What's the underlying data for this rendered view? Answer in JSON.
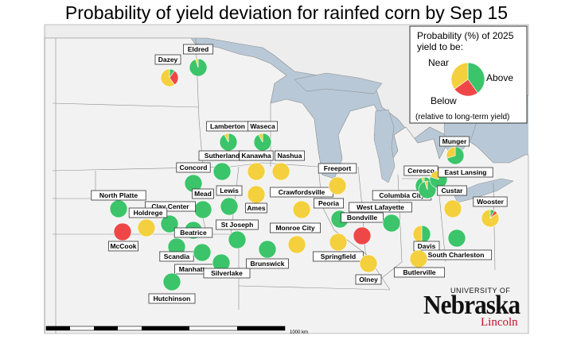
{
  "title": "Probability of yield deviation for rainfed corn by Sep 15",
  "colors": {
    "near": "#f4d03f",
    "above": "#3cc46a",
    "below": "#ef4747",
    "land": "#f2f2f2",
    "water": "#b8c8d6",
    "border": "#8a8a8a"
  },
  "legend": {
    "heading_line1": "Probability (%) of 2025",
    "heading_line2": "yield to be:",
    "near_label": "Near",
    "above_label": "Above",
    "below_label": "Below",
    "note": "(relative to long-term yield)",
    "example": {
      "near": 35,
      "above": 40,
      "below": 25
    }
  },
  "scale_bar": {
    "label": "1000 km"
  },
  "logo": {
    "top": "UNIVERSITY OF",
    "main": "Nebraska",
    "sub": "Lincoln"
  },
  "sites": [
    {
      "name": "Eldred",
      "near": 5,
      "above": 95,
      "below": 0
    },
    {
      "name": "Dazey",
      "near": 60,
      "above": 10,
      "below": 30
    },
    {
      "name": "Lamberton",
      "near": 8,
      "above": 92,
      "below": 0
    },
    {
      "name": "Waseca",
      "near": 8,
      "above": 92,
      "below": 0
    },
    {
      "name": "Sutherland",
      "near": 0,
      "above": 100,
      "below": 0
    },
    {
      "name": "Kanawha",
      "near": 100,
      "above": 0,
      "below": 0
    },
    {
      "name": "Nashua",
      "near": 100,
      "above": 0,
      "below": 0
    },
    {
      "name": "Concord",
      "near": 0,
      "above": 100,
      "below": 0
    },
    {
      "name": "Mead",
      "near": 0,
      "above": 100,
      "below": 0
    },
    {
      "name": "Lewis",
      "near": 0,
      "above": 100,
      "below": 0
    },
    {
      "name": "Ames",
      "near": 100,
      "above": 0,
      "below": 0
    },
    {
      "name": "Crawfordsville",
      "near": 100,
      "above": 0,
      "below": 0
    },
    {
      "name": "Freeport",
      "near": 100,
      "above": 0,
      "below": 0
    },
    {
      "name": "North Platte",
      "near": 0,
      "above": 100,
      "below": 0
    },
    {
      "name": "Clay Center",
      "near": 0,
      "above": 100,
      "below": 0
    },
    {
      "name": "Holdrege",
      "near": 100,
      "above": 0,
      "below": 0
    },
    {
      "name": "McCook",
      "near": 0,
      "above": 0,
      "below": 100
    },
    {
      "name": "Beatrice",
      "near": 0,
      "above": 100,
      "below": 0
    },
    {
      "name": "St Joseph",
      "near": 0,
      "above": 100,
      "below": 0
    },
    {
      "name": "Scandia",
      "near": 0,
      "above": 100,
      "below": 0
    },
    {
      "name": "Manhattan",
      "near": 0,
      "above": 100,
      "below": 0
    },
    {
      "name": "Silverlake",
      "near": 0,
      "above": 100,
      "below": 0
    },
    {
      "name": "Hutchinson",
      "near": 0,
      "above": 100,
      "below": 0
    },
    {
      "name": "Brunswick",
      "near": 0,
      "above": 100,
      "below": 0
    },
    {
      "name": "Monroe City",
      "near": 100,
      "above": 0,
      "below": 0
    },
    {
      "name": "Peoria",
      "near": 0,
      "above": 100,
      "below": 0
    },
    {
      "name": "Bondville",
      "near": 0,
      "above": 0,
      "below": 100
    },
    {
      "name": "Springfield",
      "near": 100,
      "above": 0,
      "below": 0
    },
    {
      "name": "Olney",
      "near": 100,
      "above": 0,
      "below": 0
    },
    {
      "name": "West Lafayette",
      "near": 0,
      "above": 100,
      "below": 0
    },
    {
      "name": "Columbia City",
      "near": 5,
      "above": 95,
      "below": 0
    },
    {
      "name": "Ceresco",
      "near": 5,
      "above": 95,
      "below": 0
    },
    {
      "name": "Munger",
      "near": 30,
      "above": 70,
      "below": 0
    },
    {
      "name": "East Lansing",
      "near": 20,
      "above": 80,
      "below": 0
    },
    {
      "name": "Custar",
      "near": 100,
      "above": 0,
      "below": 0
    },
    {
      "name": "Wooster",
      "near": 85,
      "above": 8,
      "below": 7
    },
    {
      "name": "Davis",
      "near": 50,
      "above": 50,
      "below": 0
    },
    {
      "name": "South Charleston",
      "near": 0,
      "above": 100,
      "below": 0
    },
    {
      "name": "Butlerville",
      "near": 100,
      "above": 0,
      "below": 0
    }
  ]
}
